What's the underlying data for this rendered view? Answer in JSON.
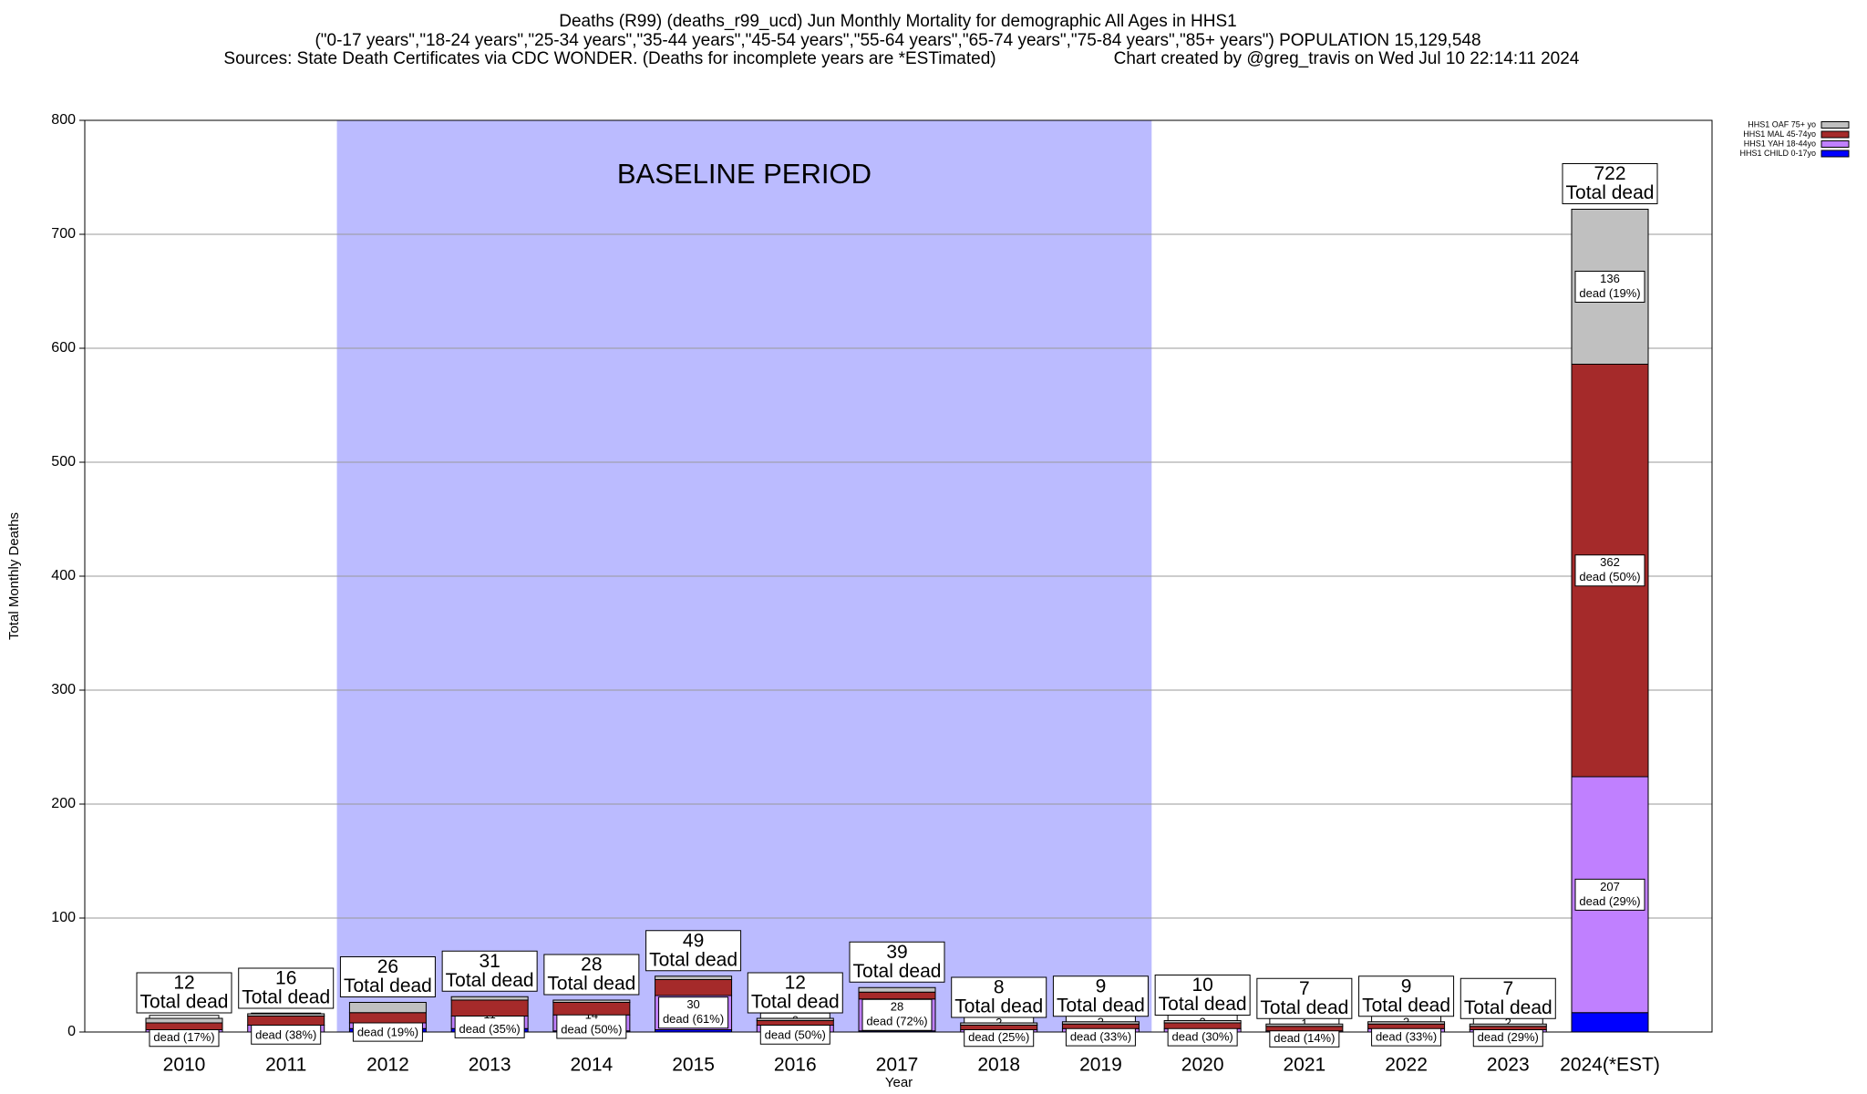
{
  "chart_data": {
    "type": "stacked_bar",
    "title": "Deaths (R99) (deaths_r99_ucd) Jun Monthly Mortality for demographic All Ages in HHS1",
    "subtitle": "(\"0-17 years\",\"18-24 years\",\"25-34 years\",\"35-44 years\",\"45-54 years\",\"55-64 years\",\"65-74 years\",\"75-84 years\",\"85+ years\") POPULATION 15,129,548",
    "source": "Sources: State Death Certificates via CDC WONDER. (Deaths for incomplete years are *ESTimated)",
    "credit": "Chart created by @greg_travis on Wed Jul 10 22:14:11 2024",
    "x_label": "Year",
    "y_label": "Total Monthly Deaths",
    "categories": [
      "2010",
      "2011",
      "2012",
      "2013",
      "2014",
      "2015",
      "2016",
      "2017",
      "2018",
      "2019",
      "2020",
      "2021",
      "2022",
      "2023",
      "2024(*EST)"
    ],
    "series": [
      {
        "name": "HHS1 CHILD 0-17yo",
        "color": "#0000ff",
        "values": [
          0,
          0,
          3,
          3,
          1,
          2,
          0,
          1,
          0,
          0,
          0,
          0,
          0,
          0,
          17
        ],
        "notes": [
          null,
          null,
          null,
          null,
          null,
          null,
          null,
          null,
          null,
          null,
          null,
          null,
          null,
          null,
          null
        ]
      },
      {
        "name": "HHS1 YAH 18-44yo",
        "color": "#c080ff",
        "values": [
          2,
          6,
          5,
          11,
          14,
          30,
          6,
          28,
          2,
          3,
          3,
          1,
          3,
          2,
          207
        ],
        "notes": [
          "dead (17%)",
          "dead (38%)",
          "dead (19%)",
          "dead (35%)",
          "dead (50%)",
          "dead (61%)",
          "dead (50%)",
          "dead (72%)",
          "dead (25%)",
          "dead (33%)",
          "dead (30%)",
          "dead (14%)",
          "dead (33%)",
          "dead (29%)",
          "dead (29%)"
        ]
      },
      {
        "name": "HHS1 MAL 45-74yo",
        "color": "#a52a2a",
        "values": [
          6,
          8,
          9,
          14,
          11,
          14,
          4,
          6,
          4,
          4,
          5,
          4,
          4,
          3,
          362
        ],
        "notes": [
          null,
          null,
          null,
          null,
          null,
          null,
          null,
          null,
          null,
          null,
          null,
          null,
          null,
          null,
          "dead (50%)"
        ]
      },
      {
        "name": "HHS1 OAF 75+ yo",
        "color": "#c0c0c0",
        "values": [
          4,
          2,
          9,
          3,
          2,
          3,
          2,
          4,
          2,
          2,
          2,
          2,
          2,
          2,
          136
        ],
        "notes": [
          null,
          null,
          null,
          null,
          null,
          null,
          null,
          null,
          null,
          null,
          null,
          null,
          null,
          null,
          "dead (19%)"
        ]
      }
    ],
    "totals": [
      12,
      16,
      26,
      31,
      28,
      49,
      12,
      39,
      8,
      9,
      10,
      7,
      9,
      7,
      722
    ],
    "total_label": "Total dead",
    "baseline": {
      "label": "BASELINE PERIOD",
      "from": "2012",
      "to": "2019",
      "color": "#bbbbff"
    },
    "ylim": [
      0,
      800
    ],
    "yticks": [
      0,
      100,
      200,
      300,
      400,
      500,
      600,
      700,
      800
    ],
    "grid": true,
    "legend": "top-right"
  }
}
